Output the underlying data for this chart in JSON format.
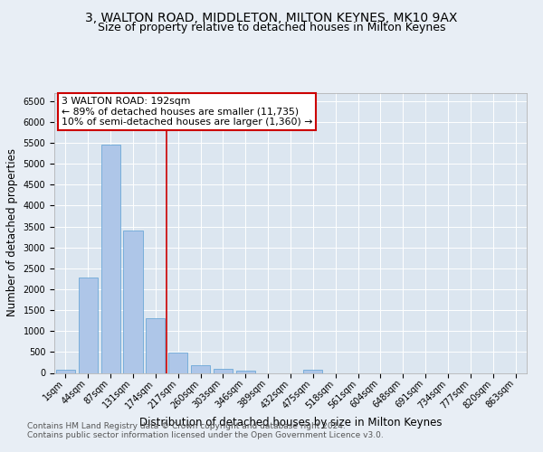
{
  "title": "3, WALTON ROAD, MIDDLETON, MILTON KEYNES, MK10 9AX",
  "subtitle": "Size of property relative to detached houses in Milton Keynes",
  "xlabel": "Distribution of detached houses by size in Milton Keynes",
  "ylabel": "Number of detached properties",
  "footnote1": "Contains HM Land Registry data © Crown copyright and database right 2024.",
  "footnote2": "Contains public sector information licensed under the Open Government Licence v3.0.",
  "bar_labels": [
    "1sqm",
    "44sqm",
    "87sqm",
    "131sqm",
    "174sqm",
    "217sqm",
    "260sqm",
    "303sqm",
    "346sqm",
    "389sqm",
    "432sqm",
    "475sqm",
    "518sqm",
    "561sqm",
    "604sqm",
    "648sqm",
    "691sqm",
    "734sqm",
    "777sqm",
    "820sqm",
    "863sqm"
  ],
  "bar_values": [
    75,
    2280,
    5450,
    3400,
    1310,
    480,
    190,
    95,
    60,
    0,
    0,
    65,
    0,
    0,
    0,
    0,
    0,
    0,
    0,
    0,
    0
  ],
  "bar_color": "#aec6e8",
  "bar_edge_color": "#5a9fd4",
  "annotation_box_text": "3 WALTON ROAD: 192sqm\n← 89% of detached houses are smaller (11,735)\n10% of semi-detached houses are larger (1,360) →",
  "vline_x": 4.5,
  "vline_color": "#cc0000",
  "ylim": [
    0,
    6700
  ],
  "yticks": [
    0,
    500,
    1000,
    1500,
    2000,
    2500,
    3000,
    3500,
    4000,
    4500,
    5000,
    5500,
    6000,
    6500
  ],
  "bg_color": "#e8eef5",
  "plot_bg_color": "#dce6f0",
  "title_fontsize": 10,
  "subtitle_fontsize": 9,
  "annotation_fontsize": 7.8,
  "axis_fontsize": 8.5,
  "tick_fontsize": 7,
  "footnote_fontsize": 6.5
}
